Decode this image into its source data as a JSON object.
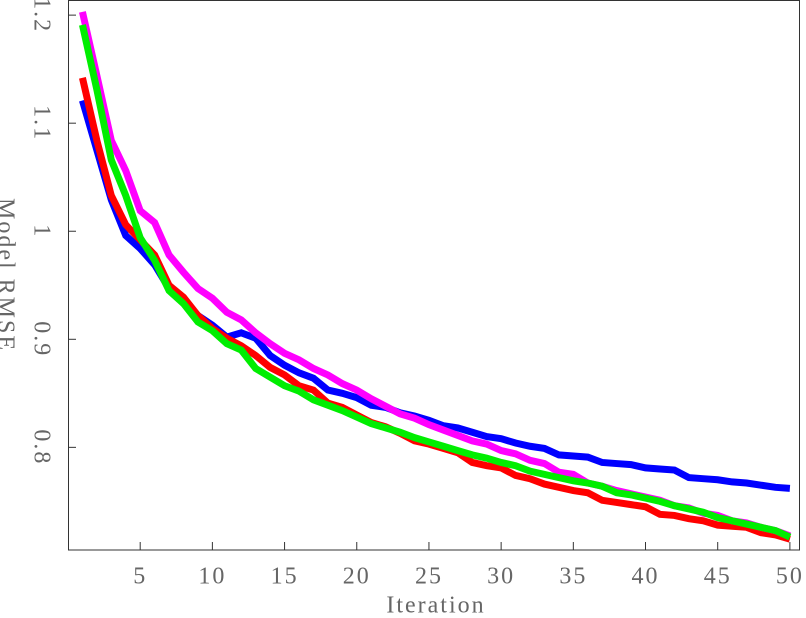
{
  "chart_data": {
    "type": "line",
    "x_label": "Iteration",
    "y_label": "Model RMSE",
    "x": [
      1,
      2,
      3,
      4,
      5,
      6,
      7,
      8,
      9,
      10,
      11,
      12,
      13,
      14,
      15,
      16,
      17,
      18,
      19,
      20,
      21,
      22,
      23,
      24,
      25,
      26,
      27,
      28,
      29,
      30,
      31,
      32,
      33,
      34,
      35,
      36,
      37,
      38,
      39,
      40,
      41,
      42,
      43,
      44,
      45,
      46,
      47,
      48,
      49,
      50
    ],
    "xlim": [
      0,
      50.7
    ],
    "ylim": [
      0.705,
      1.214
    ],
    "xticks": [
      5,
      10,
      15,
      20,
      25,
      30,
      35,
      40,
      45,
      50
    ],
    "yticks": [
      0.8,
      0.9,
      1,
      1.1,
      1.2
    ],
    "series": [
      {
        "color": "#0000ff",
        "values": [
          1.121,
          1.075,
          1.029,
          0.996,
          0.984,
          0.969,
          0.947,
          0.936,
          0.922,
          0.913,
          0.902,
          0.906,
          0.901,
          0.885,
          0.876,
          0.869,
          0.864,
          0.853,
          0.85,
          0.846,
          0.839,
          0.837,
          0.832,
          0.829,
          0.825,
          0.82,
          0.818,
          0.814,
          0.81,
          0.808,
          0.804,
          0.801,
          0.799,
          0.793,
          0.792,
          0.791,
          0.786,
          0.785,
          0.784,
          0.781,
          0.78,
          0.779,
          0.772,
          0.771,
          0.77,
          0.768,
          0.767,
          0.765,
          0.763,
          0.762
        ]
      },
      {
        "color": "#ff0000",
        "values": [
          1.142,
          1.084,
          1.033,
          1.006,
          0.992,
          0.978,
          0.95,
          0.939,
          0.922,
          0.91,
          0.901,
          0.894,
          0.885,
          0.874,
          0.867,
          0.857,
          0.853,
          0.841,
          0.837,
          0.83,
          0.823,
          0.819,
          0.813,
          0.806,
          0.803,
          0.799,
          0.795,
          0.786,
          0.783,
          0.781,
          0.774,
          0.771,
          0.766,
          0.763,
          0.76,
          0.758,
          0.751,
          0.749,
          0.747,
          0.745,
          0.738,
          0.737,
          0.734,
          0.732,
          0.728,
          0.727,
          0.726,
          0.721,
          0.719,
          0.715
        ]
      },
      {
        "color": "#ff00ff",
        "values": [
          1.203,
          1.144,
          1.084,
          1.056,
          1.019,
          1.008,
          0.978,
          0.962,
          0.947,
          0.938,
          0.925,
          0.918,
          0.906,
          0.896,
          0.887,
          0.881,
          0.873,
          0.867,
          0.859,
          0.853,
          0.845,
          0.838,
          0.831,
          0.827,
          0.821,
          0.816,
          0.811,
          0.806,
          0.803,
          0.797,
          0.794,
          0.788,
          0.785,
          0.777,
          0.775,
          0.767,
          0.764,
          0.76,
          0.757,
          0.754,
          0.751,
          0.746,
          0.744,
          0.739,
          0.737,
          0.732,
          0.73,
          0.726,
          0.723,
          0.718
        ]
      },
      {
        "color": "#00ee00",
        "values": [
          1.191,
          1.131,
          1.066,
          1.033,
          0.994,
          0.973,
          0.945,
          0.933,
          0.916,
          0.908,
          0.896,
          0.89,
          0.873,
          0.865,
          0.857,
          0.852,
          0.844,
          0.839,
          0.834,
          0.828,
          0.822,
          0.818,
          0.814,
          0.809,
          0.805,
          0.801,
          0.797,
          0.793,
          0.79,
          0.786,
          0.783,
          0.778,
          0.775,
          0.772,
          0.769,
          0.767,
          0.764,
          0.758,
          0.756,
          0.753,
          0.75,
          0.746,
          0.743,
          0.74,
          0.735,
          0.732,
          0.729,
          0.726,
          0.723,
          0.717
        ]
      }
    ]
  }
}
